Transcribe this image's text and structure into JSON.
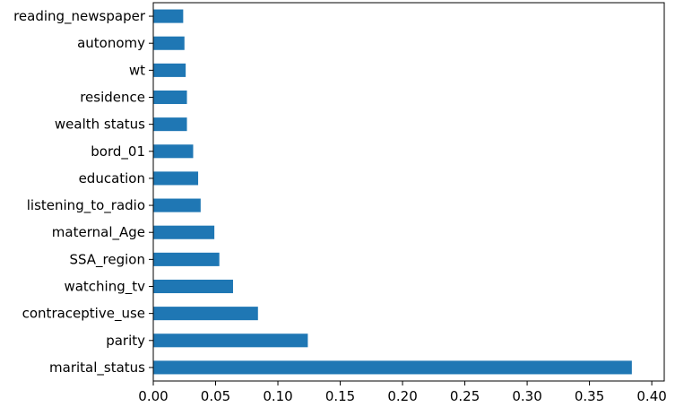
{
  "chart_data": {
    "type": "bar",
    "orientation": "horizontal",
    "title": "",
    "xlabel": "",
    "ylabel": "",
    "xlim": [
      0,
      0.41
    ],
    "x_ticks": [
      "0.00",
      "0.05",
      "0.10",
      "0.15",
      "0.20",
      "0.25",
      "0.30",
      "0.35",
      "0.40"
    ],
    "x_tick_values": [
      0,
      0.05,
      0.1,
      0.15,
      0.2,
      0.25,
      0.3,
      0.35,
      0.4
    ],
    "grid": false,
    "bar_color": "#1f77b4",
    "categories": [
      "marital_status",
      "parity",
      "contraceptive_use",
      "watching_tv",
      "SSA_region",
      "maternal_Age",
      "listening_to_radio",
      "education",
      "bord_01",
      "wealth status",
      "residence",
      "wt",
      "autonomy",
      "reading_newspaper"
    ],
    "values": [
      0.384,
      0.124,
      0.084,
      0.064,
      0.053,
      0.049,
      0.038,
      0.036,
      0.032,
      0.027,
      0.027,
      0.026,
      0.025,
      0.024
    ]
  }
}
